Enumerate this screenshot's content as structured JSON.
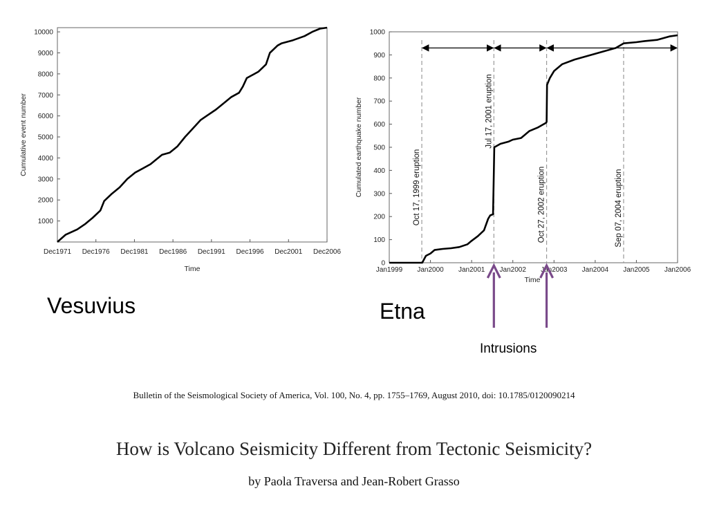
{
  "labels": {
    "vesuvius": "Vesuvius",
    "etna": "Etna",
    "intrusions": "Intrusions"
  },
  "citation": "Bulletin of the Seismological Society of America, Vol. 100, No. 4, pp. 1755–1769, August 2010, doi: 10.1785/0120090214",
  "paper_title": "How is Volcano Seismicity Different from Tectonic Seismicity?",
  "paper_authors": "by Paola Traversa and Jean-Robert Grasso",
  "colors": {
    "arrow": "#7a4a8a",
    "line": "#000000",
    "dashed": "#999999"
  },
  "chart_data": [
    {
      "type": "line",
      "title": "",
      "xlabel": "Time",
      "ylabel": "Cumulative event number",
      "x_tick_labels": [
        "Dec1971",
        "Dec1976",
        "Dec1981",
        "Dec1986",
        "Dec1991",
        "Dec1996",
        "Dec2001",
        "Dec2006"
      ],
      "y_tick_labels": [
        "1000",
        "2000",
        "3000",
        "4000",
        "5000",
        "6000",
        "7000",
        "8000",
        "9000",
        "10000"
      ],
      "xlim": [
        1971.92,
        2006.92
      ],
      "ylim": [
        0,
        10200
      ],
      "x_units": "decimal year",
      "series": [
        {
          "x": [
            1971.92,
            1973.0,
            1974.5,
            1975.5,
            1976.5,
            1977.5,
            1978.0,
            1979.0,
            1980.0,
            1981.0,
            1982.0,
            1983.0,
            1984.0,
            1985.5,
            1986.5,
            1987.5,
            1988.5,
            1989.5,
            1990.5,
            1991.3,
            1992.5,
            1993.5,
            1994.5,
            1995.5,
            1996.0,
            1996.5,
            1997.5,
            1998.0,
            1999.0,
            1999.5,
            2000.5,
            2001.0,
            2002.5,
            2004.0,
            2005.0,
            2006.0,
            2006.92
          ],
          "y": [
            0,
            350,
            600,
            850,
            1150,
            1500,
            1950,
            2300,
            2600,
            3000,
            3300,
            3500,
            3700,
            4150,
            4250,
            4550,
            5000,
            5400,
            5800,
            6000,
            6300,
            6600,
            6900,
            7100,
            7400,
            7800,
            8000,
            8100,
            8450,
            9000,
            9350,
            9450,
            9600,
            9800,
            10000,
            10150,
            10200
          ]
        }
      ]
    },
    {
      "type": "line",
      "title": "",
      "xlabel": "Time",
      "ylabel": "Cumulated earthquake number",
      "x_tick_labels": [
        "Jan1999",
        "Jan2000",
        "Jan2001",
        "Jan2002",
        "Jan2003",
        "Jan2004",
        "Jan2005",
        "Jan2006"
      ],
      "y_tick_labels": [
        "0",
        "100",
        "200",
        "300",
        "400",
        "500",
        "600",
        "700",
        "800",
        "900",
        "1000"
      ],
      "xlim": [
        1999.0,
        2006.0
      ],
      "ylim": [
        0,
        1000
      ],
      "x_units": "decimal year",
      "series": [
        {
          "x": [
            1999.0,
            1999.8,
            1999.89,
            2000.0,
            2000.1,
            2000.3,
            2000.5,
            2000.7,
            2000.9,
            2001.0,
            2001.15,
            2001.3,
            2001.4,
            2001.45,
            2001.52,
            2001.54,
            2001.55,
            2001.7,
            2001.9,
            2002.0,
            2002.2,
            2002.3,
            2002.4,
            2002.6,
            2002.7,
            2002.8,
            2002.82,
            2002.83,
            2002.9,
            2003.0,
            2003.2,
            2003.5,
            2003.8,
            2004.0,
            2004.2,
            2004.5,
            2004.69,
            2005.0,
            2005.2,
            2005.5,
            2005.8,
            2006.0
          ],
          "y": [
            0,
            0,
            30,
            40,
            55,
            60,
            63,
            68,
            80,
            95,
            115,
            140,
            190,
            205,
            210,
            400,
            500,
            515,
            525,
            533,
            540,
            555,
            570,
            585,
            595,
            605,
            610,
            770,
            800,
            830,
            860,
            880,
            895,
            905,
            915,
            930,
            950,
            955,
            960,
            965,
            980,
            985
          ]
        }
      ],
      "eruptions": [
        {
          "label": "Oct 17, 1999 eruption",
          "x": 1999.79
        },
        {
          "label": "Jul 17, 2001 eruption",
          "x": 2001.54
        },
        {
          "label": "Oct 27, 2002 eruption",
          "x": 2002.82
        },
        {
          "label": "Sep 07, 2004 eruption",
          "x": 2004.69
        }
      ],
      "interval_arrows_y": 930,
      "interval_arrows": [
        [
          1999.79,
          2001.54
        ],
        [
          2001.54,
          2002.82
        ],
        [
          2002.82,
          2006.0
        ]
      ],
      "intrusion_markers_x": [
        2001.54,
        2002.82
      ]
    }
  ]
}
